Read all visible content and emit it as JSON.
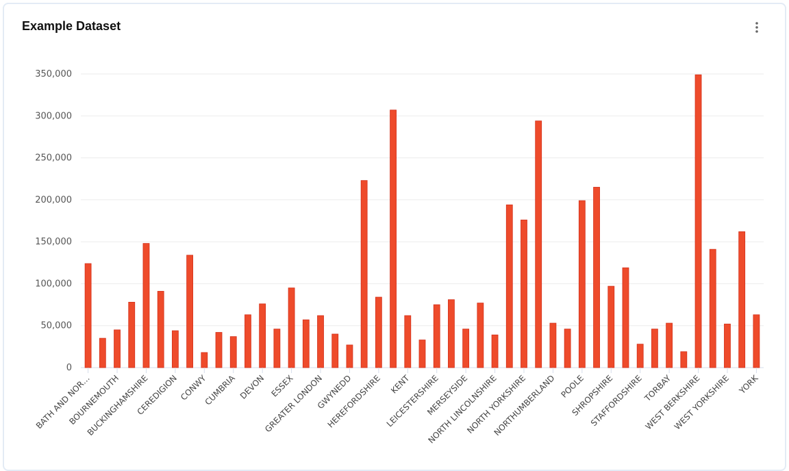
{
  "header": {
    "title": "Example Dataset",
    "menu_icon": "more-vertical-icon"
  },
  "chart_data": {
    "type": "bar",
    "title": "Example Dataset",
    "xlabel": "",
    "ylabel": "",
    "ylim": [
      0,
      350000
    ],
    "yticks": [
      "0",
      "50,000",
      "100,000",
      "150,000",
      "200,000",
      "250,000",
      "300,000",
      "350,000"
    ],
    "grid": true,
    "bar_color": "#ee4b2b",
    "categories": [
      "BATH AND NOR…",
      "",
      "BOURNEMOUTH",
      "",
      "BUCKINGHAMSHIRE",
      "",
      "CEREDIGION",
      "",
      "CONWY",
      "",
      "CUMBRIA",
      "",
      "DEVON",
      "",
      "ESSEX",
      "",
      "GREATER LONDON",
      "",
      "GWYNEDD",
      "",
      "HEREFORDSHIRE",
      "",
      "KENT",
      "",
      "LEICESTERSHIRE",
      "",
      "MERSEYSIDE",
      "",
      "NORTH LINCOLNSHIRE",
      "",
      "NORTH YORKSHIRE",
      "",
      "NORTHUMBERLAND",
      "",
      "POOLE",
      "",
      "SHROPSHIRE",
      "",
      "STAFFORDSHIRE",
      "",
      "TORBAY",
      "",
      "WEST BERKSHIRE",
      "",
      "WEST YORKSHIRE",
      "",
      "YORK"
    ],
    "values": [
      124000,
      35000,
      45000,
      78000,
      148000,
      91000,
      44000,
      134000,
      18000,
      42000,
      37000,
      63000,
      76000,
      46000,
      95000,
      57000,
      62000,
      40000,
      27000,
      223000,
      84000,
      307000,
      62000,
      33000,
      75000,
      81000,
      46000,
      77000,
      39000,
      194000,
      176000,
      294000,
      53000,
      46000,
      199000,
      215000,
      97000,
      119000,
      28000,
      46000,
      53000,
      19000,
      349000,
      141000,
      52000,
      162000,
      63000
    ]
  }
}
